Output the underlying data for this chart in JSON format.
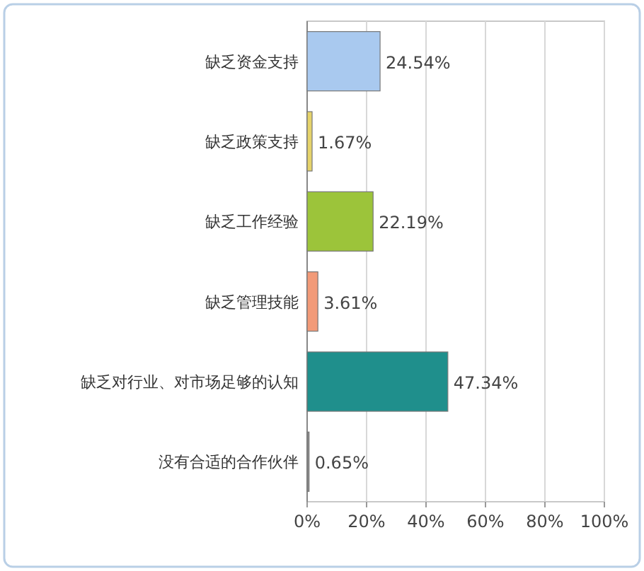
{
  "chart_data": {
    "type": "bar",
    "orientation": "horizontal",
    "categories": [
      "缺乏资金支持",
      "缺乏政策支持",
      "缺乏工作经验",
      "缺乏管理技能",
      "缺乏对行业、对市场足够的认知",
      "没有合适的合作伙伴"
    ],
    "values": [
      24.54,
      1.67,
      22.19,
      3.61,
      47.34,
      0.65
    ],
    "colors": [
      "#a9c9ef",
      "#e6d36a",
      "#9cc43a",
      "#f29a78",
      "#1f8f8c",
      "#8a8a8a"
    ],
    "value_labels": [
      "24.54%",
      "1.67%",
      "22.19%",
      "3.61%",
      "47.34%",
      "0.65%"
    ],
    "xlim": [
      0,
      100
    ],
    "xticks": [
      {
        "value": 0,
        "label": "0%"
      },
      {
        "value": 20,
        "label": "20%"
      },
      {
        "value": 40,
        "label": "40%"
      },
      {
        "value": 60,
        "label": "60%"
      },
      {
        "value": 80,
        "label": "80%"
      },
      {
        "value": 100,
        "label": "100%"
      }
    ],
    "grid": "x"
  }
}
